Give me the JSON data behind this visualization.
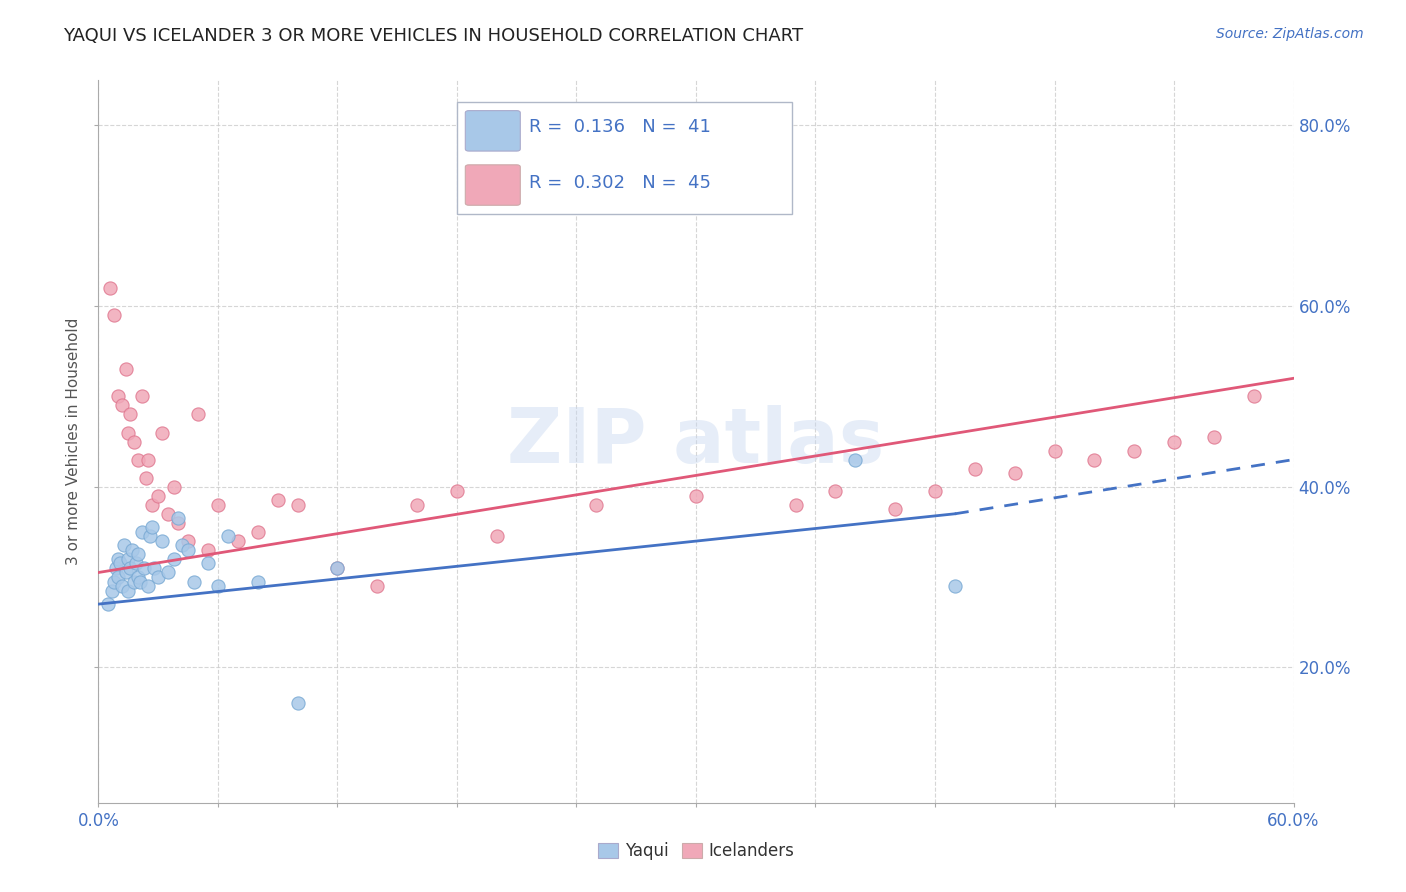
{
  "title": "YAQUI VS ICELANDER 3 OR MORE VEHICLES IN HOUSEHOLD CORRELATION CHART",
  "source_text": "Source: ZipAtlas.com",
  "ylabel": "3 or more Vehicles in Household",
  "xlim": [
    0.0,
    0.6
  ],
  "ylim": [
    0.05,
    0.85
  ],
  "yaqui_color": "#a8c8e8",
  "yaqui_edge_color": "#7aaad4",
  "icelander_color": "#f0a8b8",
  "icelander_edge_color": "#e07890",
  "yaqui_line_color": "#4472c4",
  "icelander_line_color": "#e05878",
  "legend_R_yaqui": "0.136",
  "legend_N_yaqui": "41",
  "legend_R_icelander": "0.302",
  "legend_N_icelander": "45",
  "tick_color": "#4472c4",
  "title_color": "#222222",
  "source_color": "#4472c4",
  "yaqui_x": [
    0.005,
    0.007,
    0.008,
    0.009,
    0.01,
    0.01,
    0.011,
    0.012,
    0.013,
    0.014,
    0.015,
    0.015,
    0.016,
    0.017,
    0.018,
    0.019,
    0.02,
    0.02,
    0.021,
    0.022,
    0.023,
    0.025,
    0.026,
    0.027,
    0.028,
    0.03,
    0.032,
    0.035,
    0.038,
    0.04,
    0.042,
    0.045,
    0.048,
    0.055,
    0.06,
    0.065,
    0.08,
    0.1,
    0.12,
    0.38,
    0.43
  ],
  "yaqui_y": [
    0.27,
    0.285,
    0.295,
    0.31,
    0.3,
    0.32,
    0.315,
    0.29,
    0.335,
    0.305,
    0.285,
    0.32,
    0.31,
    0.33,
    0.295,
    0.315,
    0.3,
    0.325,
    0.295,
    0.35,
    0.31,
    0.29,
    0.345,
    0.355,
    0.31,
    0.3,
    0.34,
    0.305,
    0.32,
    0.365,
    0.335,
    0.33,
    0.295,
    0.315,
    0.29,
    0.345,
    0.295,
    0.16,
    0.31,
    0.43,
    0.29
  ],
  "icelander_x": [
    0.006,
    0.008,
    0.01,
    0.012,
    0.014,
    0.015,
    0.016,
    0.018,
    0.02,
    0.022,
    0.024,
    0.025,
    0.027,
    0.03,
    0.032,
    0.035,
    0.038,
    0.04,
    0.045,
    0.05,
    0.055,
    0.06,
    0.07,
    0.08,
    0.09,
    0.1,
    0.12,
    0.14,
    0.16,
    0.18,
    0.2,
    0.25,
    0.3,
    0.35,
    0.37,
    0.4,
    0.42,
    0.44,
    0.46,
    0.48,
    0.5,
    0.52,
    0.54,
    0.56,
    0.58
  ],
  "icelander_y": [
    0.62,
    0.59,
    0.5,
    0.49,
    0.53,
    0.46,
    0.48,
    0.45,
    0.43,
    0.5,
    0.41,
    0.43,
    0.38,
    0.39,
    0.46,
    0.37,
    0.4,
    0.36,
    0.34,
    0.48,
    0.33,
    0.38,
    0.34,
    0.35,
    0.385,
    0.38,
    0.31,
    0.29,
    0.38,
    0.395,
    0.345,
    0.38,
    0.39,
    0.38,
    0.395,
    0.375,
    0.395,
    0.42,
    0.415,
    0.44,
    0.43,
    0.44,
    0.45,
    0.455,
    0.5
  ],
  "yaqui_line_start": 0.0,
  "yaqui_line_solid_end": 0.43,
  "yaqui_line_dash_end": 0.6,
  "icelander_line_start": 0.0,
  "icelander_line_end": 0.6,
  "yaqui_line_y_start": 0.27,
  "yaqui_line_y_at_solid_end": 0.37,
  "yaqui_line_y_at_dash_end": 0.43,
  "icelander_line_y_start": 0.305,
  "icelander_line_y_end": 0.52
}
